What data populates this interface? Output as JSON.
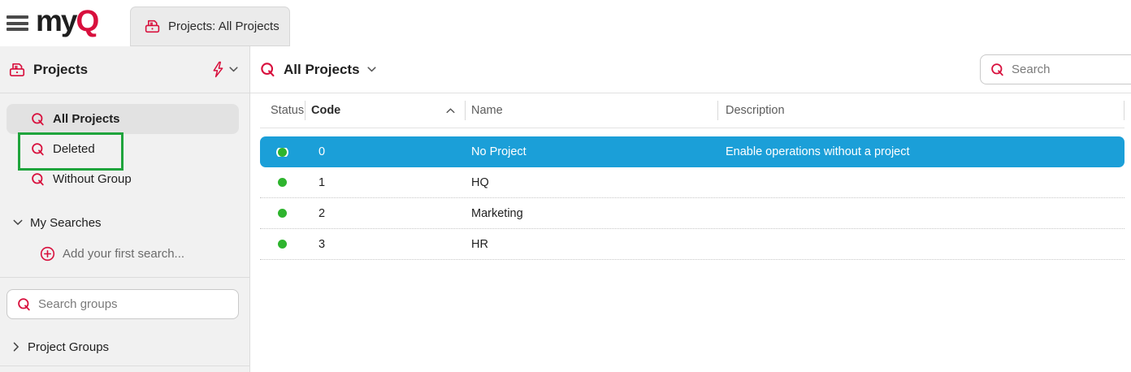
{
  "brand": {
    "logo_my": "my",
    "logo_q": "Q"
  },
  "topbar": {
    "tab_label": "Projects: All Projects"
  },
  "sidebar": {
    "title": "Projects",
    "search_items": [
      {
        "label": "All Projects",
        "selected": true,
        "annotated": false
      },
      {
        "label": "Deleted",
        "selected": false,
        "annotated": true
      },
      {
        "label": "Without Group",
        "selected": false,
        "annotated": false
      }
    ],
    "my_searches_label": "My Searches",
    "add_first_search_label": "Add your first search...",
    "search_groups_placeholder": "Search groups",
    "project_groups_label": "Project Groups"
  },
  "main": {
    "title": "All Projects",
    "search_placeholder": "Search",
    "table": {
      "columns": [
        "Status",
        "Code",
        "Name",
        "Description"
      ],
      "sort": {
        "column": "Code",
        "direction": "asc"
      },
      "rows": [
        {
          "status": "active",
          "code": "0",
          "name": "No Project",
          "description": "Enable operations without a project",
          "selected": true
        },
        {
          "status": "active",
          "code": "1",
          "name": "HQ",
          "description": "",
          "selected": false
        },
        {
          "status": "active",
          "code": "2",
          "name": "Marketing",
          "description": "",
          "selected": false
        },
        {
          "status": "active",
          "code": "3",
          "name": "HR",
          "description": "",
          "selected": false
        }
      ]
    }
  },
  "colors": {
    "brand_red": "#d8103d",
    "selection_blue": "#1b9fd8",
    "status_green": "#2eb42e",
    "annotation_green": "#1fa43c"
  }
}
